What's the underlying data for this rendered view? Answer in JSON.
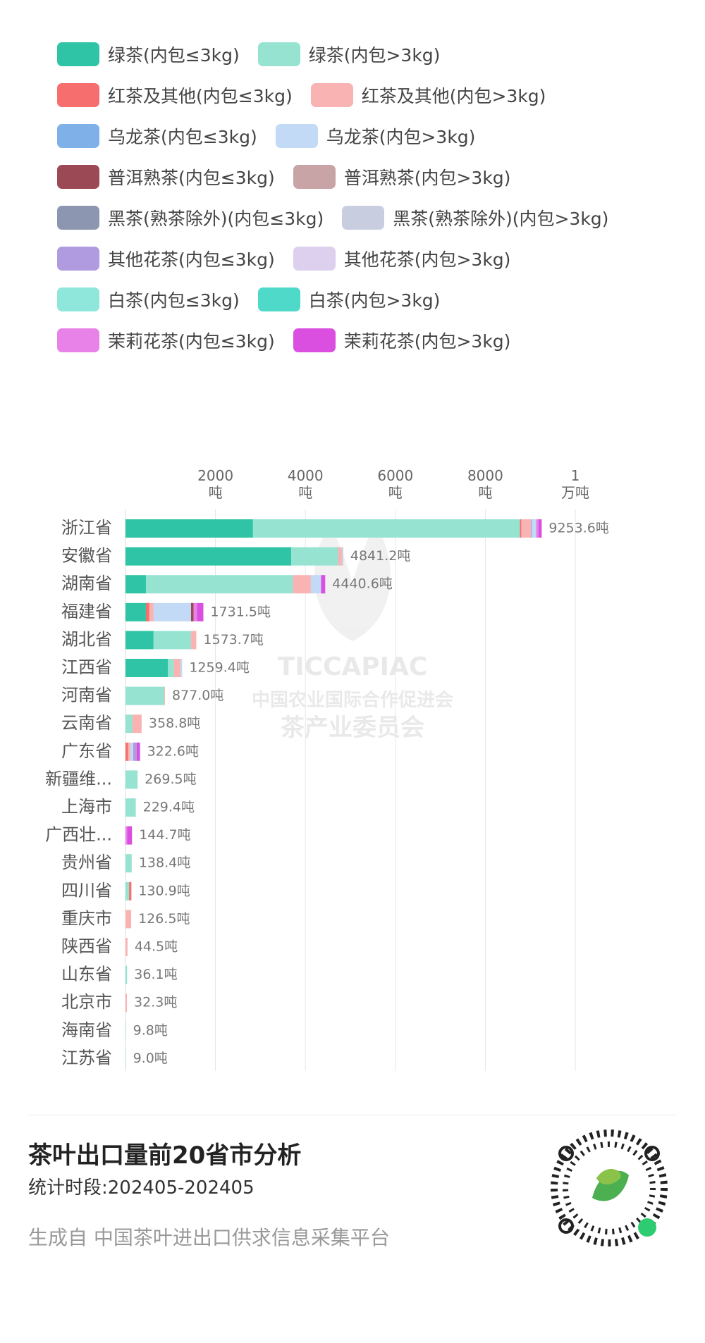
{
  "chart_data": {
    "type": "bar",
    "orientation": "horizontal",
    "stacked": true,
    "title": "茶叶出口量前20省市分析",
    "subtitle": "统计时段:202405-202405",
    "source": "生成自 中国茶叶进出口供求信息采集平台",
    "watermark": [
      "TICCAPIAC",
      "中国农业国际合作促进会",
      "茶产业委员会"
    ],
    "categories": [
      "浙江省",
      "安徽省",
      "湖南省",
      "福建省",
      "湖北省",
      "江西省",
      "河南省",
      "云南省",
      "广东省",
      "新疆维...",
      "上海市",
      "广西壮...",
      "贵州省",
      "四川省",
      "重庆市",
      "陕西省",
      "山东省",
      "北京市",
      "海南省",
      "江苏省"
    ],
    "totals": [
      9253.6,
      4841.2,
      4440.6,
      1731.5,
      1573.7,
      1259.4,
      877.0,
      358.8,
      322.6,
      269.5,
      229.4,
      144.7,
      138.4,
      130.9,
      126.5,
      44.5,
      36.1,
      32.3,
      9.8,
      9.0
    ],
    "total_labels": [
      "9253.6吨",
      "4841.2吨",
      "4440.6吨",
      "1731.5吨",
      "1573.7吨",
      "1259.4吨",
      "877.0吨",
      "358.8吨",
      "322.6吨",
      "269.5吨",
      "229.4吨",
      "144.7吨",
      "138.4吨",
      "130.9吨",
      "126.5吨",
      "44.5吨",
      "36.1吨",
      "32.3吨",
      "9.8吨",
      "9.0吨"
    ],
    "xlim": [
      0,
      10000
    ],
    "xticks": [
      {
        "value": 2000,
        "label": "2000\n吨"
      },
      {
        "value": 4000,
        "label": "4000\n吨"
      },
      {
        "value": 6000,
        "label": "6000\n吨"
      },
      {
        "value": 8000,
        "label": "8000\n吨"
      },
      {
        "value": 10000,
        "label": "1\n万吨"
      }
    ],
    "grid": true,
    "series": [
      {
        "name": "绿茶(内包≤3kg)",
        "color": "#2ec4a5",
        "values": [
          2835,
          3686,
          454,
          454,
          624,
          945,
          0,
          0,
          0,
          0,
          0,
          0,
          0,
          0,
          0,
          0,
          0,
          0,
          0,
          0
        ]
      },
      {
        "name": "绿茶(内包>3kg)",
        "color": "#96e3d2",
        "values": [
          5935,
          1040,
          3270,
          0,
          832,
          132,
          860,
          150,
          0,
          269.5,
          229.4,
          0,
          138.4,
          80,
          0,
          0,
          36.1,
          0,
          9.8,
          9.0
        ]
      },
      {
        "name": "红茶及其他(内包≤3kg)",
        "color": "#f76e6e",
        "values": [
          30,
          0,
          0,
          76,
          0,
          0,
          0,
          0,
          60,
          0,
          0,
          0,
          0,
          50.9,
          0,
          0,
          0,
          0,
          0,
          0
        ]
      },
      {
        "name": "红茶及其他(内包>3kg)",
        "color": "#f9b3b3",
        "values": [
          220,
          80,
          397,
          95,
          117.7,
          144.4,
          17,
          208.8,
          50,
          0,
          0,
          0,
          0,
          0,
          126.5,
          44.5,
          0,
          32.3,
          0,
          0
        ]
      },
      {
        "name": "乌龙茶(内包≤3kg)",
        "color": "#7fb1e8",
        "values": [
          20,
          0,
          0,
          0,
          0,
          0,
          0,
          0,
          0,
          0,
          0,
          0,
          0,
          0,
          0,
          0,
          0,
          0,
          0,
          0
        ]
      },
      {
        "name": "乌龙茶(内包>3kg)",
        "color": "#c2daf5",
        "values": [
          90,
          0,
          227,
          832,
          0,
          38,
          0,
          0,
          60,
          0,
          0,
          0,
          0,
          0,
          0,
          0,
          0,
          0,
          0,
          0
        ]
      },
      {
        "name": "普洱熟茶(内包≤3kg)",
        "color": "#9b4a55",
        "values": [
          0,
          0,
          0,
          57,
          0,
          0,
          0,
          0,
          0,
          0,
          0,
          0,
          0,
          0,
          0,
          0,
          0,
          0,
          0,
          0
        ]
      },
      {
        "name": "普洱熟茶(内包>3kg)",
        "color": "#c9a4a7",
        "values": [
          0,
          0,
          0,
          0,
          0,
          0,
          0,
          0,
          0,
          0,
          0,
          0,
          0,
          0,
          0,
          0,
          0,
          0,
          0,
          0
        ]
      },
      {
        "name": "黑茶(熟茶除外)(内包≤3kg)",
        "color": "#8c96b0",
        "values": [
          0,
          0,
          0,
          0,
          0,
          0,
          0,
          0,
          0,
          0,
          0,
          0,
          0,
          0,
          0,
          0,
          0,
          0,
          0,
          0
        ]
      },
      {
        "name": "黑茶(熟茶除外)(内包>3kg)",
        "color": "#c9cde0",
        "values": [
          0,
          35.2,
          0,
          0,
          0,
          0,
          0,
          0,
          0,
          0,
          0,
          0,
          0,
          0,
          0,
          0,
          0,
          0,
          0,
          0
        ]
      },
      {
        "name": "其他花茶(内包≤3kg)",
        "color": "#b09be0",
        "values": [
          0,
          0,
          0,
          0,
          0,
          0,
          0,
          0,
          80,
          0,
          0,
          0,
          0,
          0,
          0,
          0,
          0,
          0,
          0,
          0
        ]
      },
      {
        "name": "其他花茶(内包>3kg)",
        "color": "#dcd0ee",
        "values": [
          0,
          0,
          0,
          0,
          0,
          0,
          0,
          0,
          0,
          0,
          0,
          0,
          0,
          0,
          0,
          0,
          0,
          0,
          0,
          0
        ]
      },
      {
        "name": "白茶(内包≤3kg)",
        "color": "#8fe6da",
        "values": [
          0,
          0,
          0,
          0,
          0,
          0,
          0,
          0,
          0,
          0,
          0,
          0,
          0,
          0,
          0,
          0,
          0,
          0,
          0,
          0
        ]
      },
      {
        "name": "白茶(内包>3kg)",
        "color": "#4fd9c8",
        "values": [
          0,
          0,
          0,
          0,
          0,
          0,
          0,
          0,
          0,
          0,
          0,
          0,
          0,
          0,
          0,
          0,
          0,
          0,
          0,
          0
        ]
      },
      {
        "name": "茉莉花茶(内包≤3kg)",
        "color": "#e882e8",
        "values": [
          50,
          0,
          0,
          76,
          0,
          0,
          0,
          0,
          0,
          0,
          0,
          40,
          0,
          0,
          0,
          0,
          0,
          0,
          0,
          0
        ]
      },
      {
        "name": "茉莉花茶(内包>3kg)",
        "color": "#da4fe0",
        "values": [
          73.6,
          0,
          92.6,
          141.5,
          0,
          0,
          0,
          0,
          72.6,
          0,
          0,
          104.7,
          0,
          0,
          0,
          0,
          0,
          0,
          0,
          0
        ]
      }
    ]
  }
}
